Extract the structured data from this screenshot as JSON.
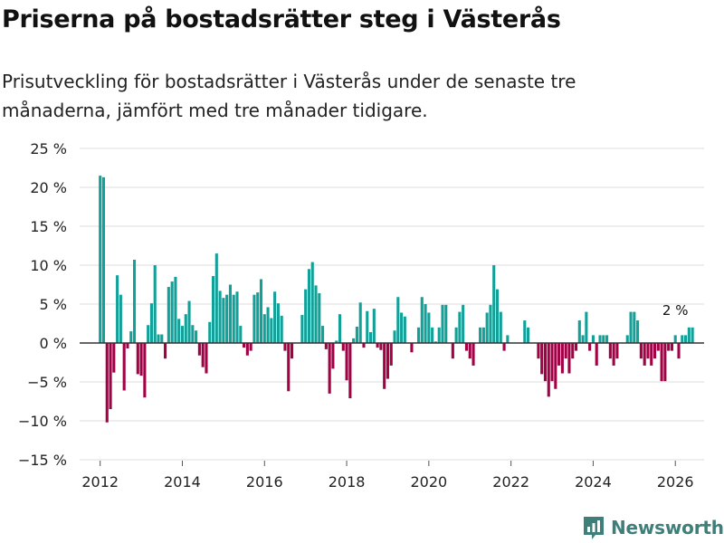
{
  "title": "Priserna på bostadsrätter steg i Västerås",
  "subtitle": "Prisutveckling för bostadsrätter i Västerås under de senaste tre månaderna, jämfört med tre månader tidigare.",
  "brand": {
    "name": "Newsworthy",
    "icon": "newsworthy-logo-icon"
  },
  "colors": {
    "positive": "#12a098",
    "negative": "#a00245",
    "grid": "#dddddd",
    "zero": "#333333",
    "text": "#222222"
  },
  "chart_data": {
    "type": "bar",
    "title": "Priserna på bostadsrätter steg i Västerås",
    "xlabel": "",
    "ylabel": "",
    "ylim": [
      -15,
      25
    ],
    "y_ticks": [
      25,
      20,
      15,
      10,
      5,
      0,
      -5,
      -10,
      -15
    ],
    "y_tick_labels": [
      "25 %",
      "20 %",
      "15 %",
      "10 %",
      "5 %",
      "0 %",
      "−5 %",
      "−10 %",
      "−15 %"
    ],
    "x_range": [
      2011.5,
      2026.7
    ],
    "x_ticks": [
      2012,
      2014,
      2016,
      2018,
      2020,
      2022,
      2024,
      2026
    ],
    "x_tick_labels": [
      "2012",
      "2014",
      "2016",
      "2018",
      "2020",
      "2022",
      "2024",
      "2026"
    ],
    "start": "2012-01",
    "frequency": "monthly",
    "values": [
      21.5,
      21.3,
      -10.2,
      -8.5,
      -3.8,
      8.7,
      6.2,
      -6.1,
      -0.7,
      1.5,
      10.7,
      -4.0,
      -4.2,
      -7.0,
      2.3,
      5.1,
      10.0,
      1.1,
      1.1,
      -2.0,
      7.2,
      7.9,
      8.5,
      3.1,
      2.2,
      3.7,
      5.4,
      2.3,
      1.6,
      -1.6,
      -3.1,
      -3.9,
      2.7,
      8.6,
      11.5,
      6.7,
      5.8,
      6.2,
      7.5,
      6.2,
      6.6,
      2.2,
      -0.6,
      -1.6,
      -1.0,
      6.2,
      6.5,
      8.2,
      3.7,
      4.6,
      3.2,
      6.6,
      5.1,
      3.5,
      -1.0,
      -6.2,
      -2.0,
      0,
      0,
      3.6,
      6.9,
      9.5,
      10.4,
      7.4,
      6.4,
      2.2,
      -0.8,
      -6.5,
      -3.3,
      0.3,
      3.7,
      -1.0,
      -4.8,
      -7.1,
      0.6,
      2.1,
      5.2,
      -0.6,
      4.1,
      1.4,
      4.4,
      -0.6,
      -0.9,
      -5.9,
      -4.6,
      -2.9,
      1.6,
      5.9,
      3.9,
      3.4,
      0,
      -1.2,
      0,
      2.0,
      5.9,
      5.0,
      3.9,
      2.0,
      0.2,
      2.0,
      4.9,
      4.9,
      0,
      -2.0,
      2.0,
      4.0,
      4.9,
      -1.0,
      -2.0,
      -2.9,
      0,
      2.0,
      2.0,
      3.9,
      4.9,
      10.0,
      6.9,
      4.0,
      -1.0,
      1.0,
      0,
      0,
      0,
      0,
      2.9,
      2.0,
      0,
      0,
      -2.0,
      -4.0,
      -4.9,
      -6.9,
      -4.9,
      -5.9,
      -2.9,
      -3.9,
      -2.0,
      -3.9,
      -2.0,
      -1.0,
      2.9,
      1.0,
      4.0,
      -1.0,
      1.0,
      -2.9,
      1.0,
      1.0,
      1.0,
      -2.0,
      -2.9,
      -2.0,
      0,
      0,
      1.0,
      4.0,
      4.0,
      2.9,
      -2.0,
      -2.9,
      -2.0,
      -2.9,
      -2.0,
      -1.0,
      -4.9,
      -4.9,
      -1.0,
      -1.0,
      1.0,
      -2.0,
      1.0,
      1.0,
      2.0,
      2.0
    ],
    "annotations": [
      {
        "text": "2 %",
        "x": "2026-01",
        "y": 2
      }
    ]
  }
}
